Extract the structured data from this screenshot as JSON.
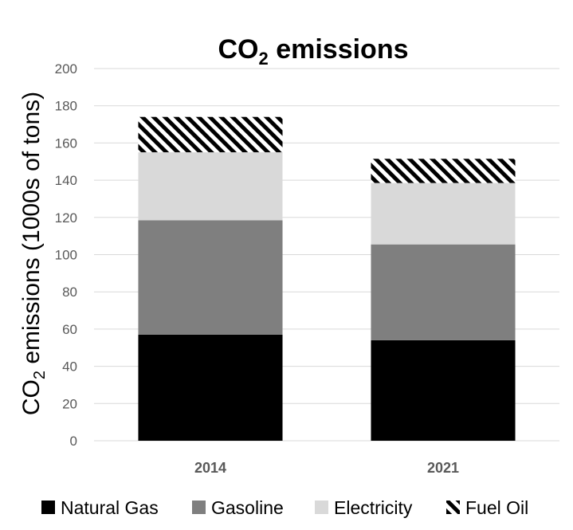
{
  "chart_data": {
    "type": "bar",
    "stacked": true,
    "title": {
      "main": "CO",
      "subscript": "2",
      "rest": " emissions"
    },
    "ylabel": {
      "main": "CO",
      "subscript": "2",
      "rest": " emissions (1000s of tons)"
    },
    "xlabel": "",
    "categories": [
      "2014",
      "2021"
    ],
    "ylim": [
      0,
      200
    ],
    "yticks": [
      0,
      20,
      40,
      60,
      80,
      100,
      120,
      140,
      160,
      180,
      200
    ],
    "grid": true,
    "legend_position": "bottom",
    "series": [
      {
        "name": "Natural Gas",
        "values": [
          57,
          54
        ],
        "color": "#000000",
        "pattern": "solid"
      },
      {
        "name": "Gasoline",
        "values": [
          61.5,
          51.5
        ],
        "color": "#7f7f7f",
        "pattern": "solid"
      },
      {
        "name": "Electricity",
        "values": [
          36.5,
          33
        ],
        "color": "#d9d9d9",
        "pattern": "solid"
      },
      {
        "name": "Fuel Oil",
        "values": [
          19,
          13
        ],
        "color": "#000000",
        "pattern": "diagonal-hatch"
      }
    ]
  }
}
